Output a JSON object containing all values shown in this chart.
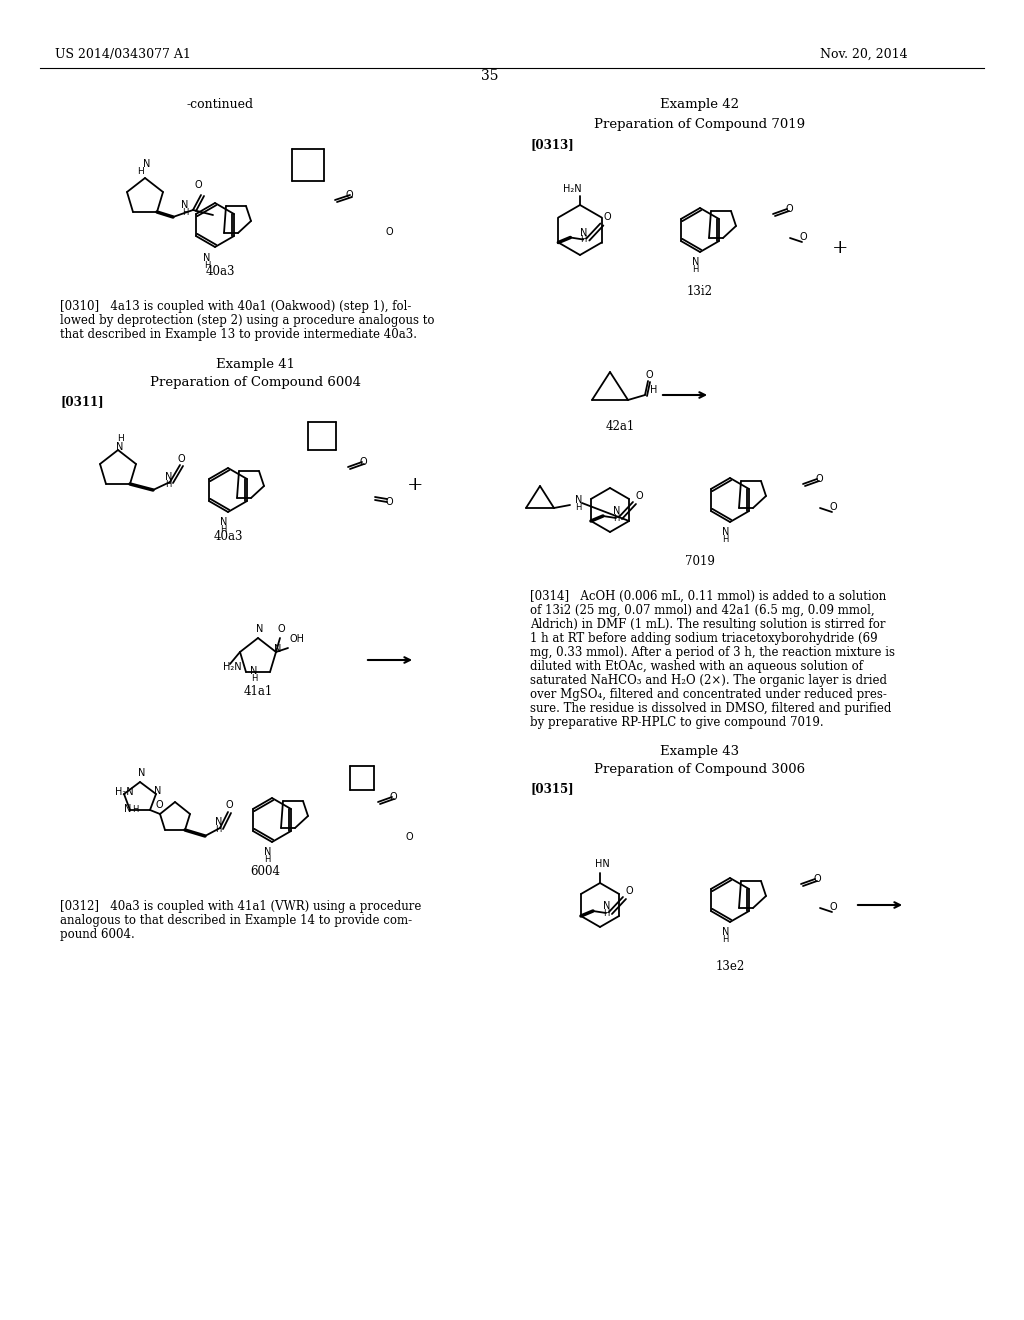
{
  "background_color": "#ffffff",
  "page_header_left": "US 2014/0343077 A1",
  "page_header_right": "Nov. 20, 2014",
  "page_number": "35",
  "left_column_header": "-continued",
  "right_column_header": "Example 42",
  "right_subtitle": "Preparation of Compound 7019",
  "left_example_label": "Example 41",
  "left_example_subtitle": "Preparation of Compound 6004",
  "paragraph_0310": "[0310]   4a13 is coupled with 40a1 (Oakwood) (step 1), followed by deprotection (step 2) using a procedure analogous to that described in Example 13 to provide intermediate 40a3.",
  "paragraph_0311": "[0311]",
  "paragraph_0312": "[0312]   40a3 is coupled with 41a1 (VWR) using a procedure analogous to that described in Example 14 to provide compound 6004.",
  "paragraph_0313": "[0313]",
  "paragraph_0314": "[0314]   AcOH (0.006 mL, 0.11 mmol) is added to a solution of 13i2 (25 mg, 0.07 mmol) and 42a1 (6.5 mg, 0.09 mmol, Aldrich) in DMF (1 mL). The resulting solution is stirred for 1 h at RT before adding sodium triacetoxyborohydride (69 mg, 0.33 mmol). After a period of 3 h, the reaction mixture is diluted with EtOAc, washed with an aqueous solution of saturated NaHCO₃ and H₂O (2×). The organic layer is dried over MgSO₄, filtered and concentrated under reduced pressure. The residue is dissolved in DMSO, filtered and purified by preparative RP-HPLC to give compound 7019.",
  "paragraph_0315": "[0315]",
  "example_43_label": "Example 43",
  "example_43_subtitle": "Preparation of Compound 3006",
  "compound_labels": [
    "40a3",
    "40a3",
    "41a1",
    "6004",
    "13i2",
    "42a1",
    "7019",
    "13e2"
  ],
  "font_size_body": 8.5,
  "font_size_header": 9,
  "font_size_label": 9,
  "font_size_example": 9.5
}
